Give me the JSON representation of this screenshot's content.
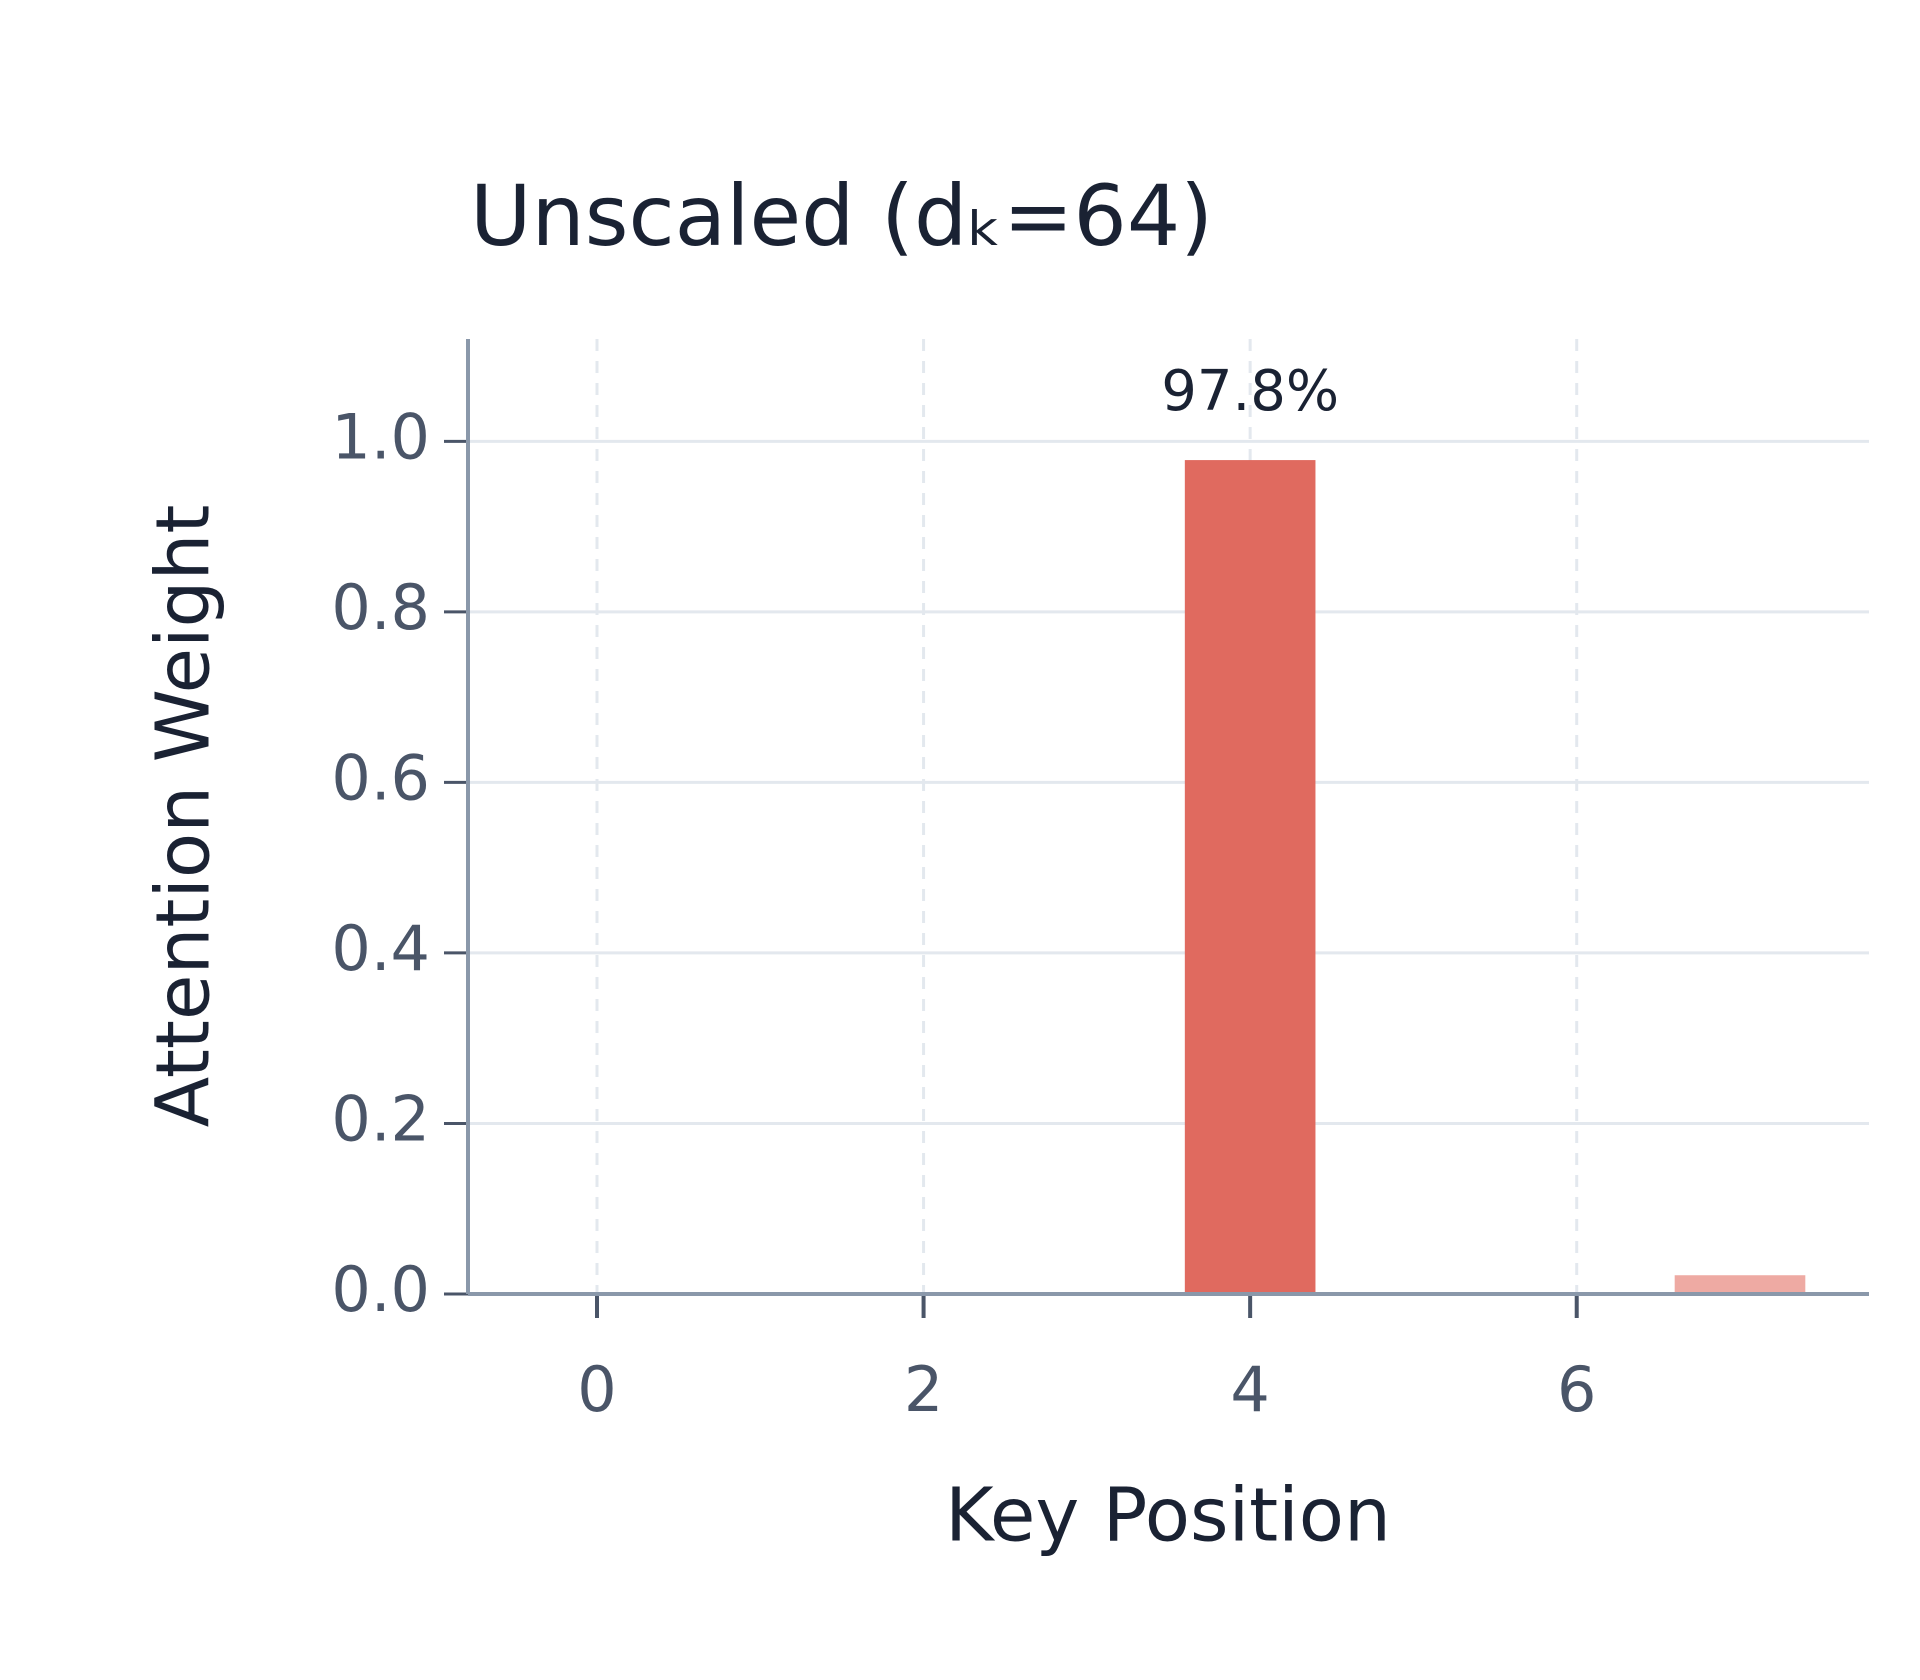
{
  "chart_data": {
    "type": "bar",
    "title": "Unscaled (dₖ=64)",
    "x": [
      0,
      1,
      2,
      3,
      4,
      5,
      6,
      7
    ],
    "values": [
      0.0,
      0.0,
      0.0,
      0.0,
      0.978,
      0.0,
      0.0,
      0.022
    ],
    "value_labels": [
      null,
      null,
      null,
      null,
      "97.8%",
      null,
      null,
      null
    ],
    "colors": [
      "#e06a5f",
      "#e06a5f",
      "#e06a5f",
      "#e06a5f",
      "#e06a5f",
      "#e06a5f",
      "#e06a5f",
      "#eeaaa3"
    ],
    "xlabel": "Key Position",
    "ylabel": "Attention Weight",
    "xlim": [
      -0.79,
      7.79
    ],
    "xticks": [
      0,
      2,
      4,
      6
    ],
    "ylim": [
      0,
      1.12
    ],
    "yticks": [
      {
        "value": 0,
        "label": "0.0"
      },
      0.2,
      0.4,
      0.6,
      0.8,
      {
        "value": 1,
        "label": "1.0"
      }
    ],
    "grid": true
  }
}
